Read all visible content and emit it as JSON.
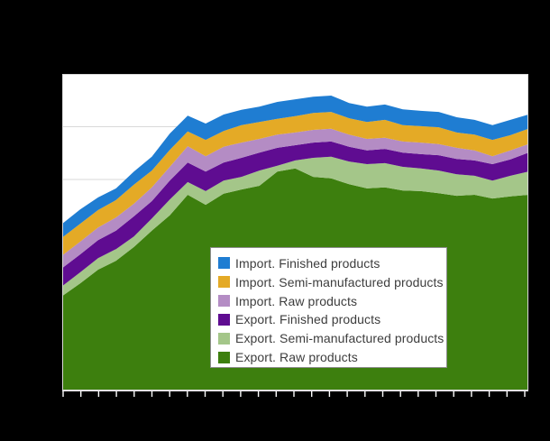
{
  "figure": {
    "background": "#000000",
    "plot": {
      "background": "#ffffff",
      "grid_color": "#d9d9d9",
      "border_color": "#d9d9d9",
      "axis_line_color": "#ececec",
      "tick_color": "#ffffff",
      "y_gridline_divisions": 6,
      "x_tick_count": 27,
      "axis_tick_labels_visible": false,
      "title_visible": false
    },
    "legend": {
      "background": "#ffffff",
      "border_color": "#8c8c8c",
      "text_color": "#3d3d3d",
      "order": "top entry = top stack band"
    }
  },
  "chart_data": {
    "type": "area",
    "stacked": true,
    "grid": true,
    "legend_position": "inside-bottom-center",
    "x_point_count": 27,
    "xlim": [
      0,
      26
    ],
    "ylim": [
      0,
      6
    ],
    "y_unit": "gridline units (numeric axis labels not visible in image)",
    "x_labels_visible": false,
    "y_labels_visible": false,
    "series": [
      {
        "name": "Export. Raw products",
        "color": "#3d7f0e",
        "values": [
          1.79,
          2.03,
          2.29,
          2.46,
          2.72,
          3.03,
          3.32,
          3.71,
          3.52,
          3.73,
          3.81,
          3.88,
          4.15,
          4.21,
          4.05,
          4.02,
          3.91,
          3.83,
          3.85,
          3.79,
          3.78,
          3.74,
          3.69,
          3.71,
          3.64,
          3.68,
          3.71
        ]
      },
      {
        "name": "Export. Semi-manufactured products",
        "color": "#a4c689",
        "values": [
          0.19,
          0.21,
          0.22,
          0.22,
          0.2,
          0.23,
          0.3,
          0.24,
          0.26,
          0.25,
          0.24,
          0.29,
          0.11,
          0.15,
          0.36,
          0.41,
          0.43,
          0.46,
          0.46,
          0.45,
          0.43,
          0.43,
          0.41,
          0.36,
          0.34,
          0.39,
          0.44
        ]
      },
      {
        "name": "Export. Finished products",
        "color": "#5f0c91",
        "values": [
          0.34,
          0.34,
          0.34,
          0.35,
          0.38,
          0.33,
          0.36,
          0.37,
          0.37,
          0.34,
          0.36,
          0.34,
          0.34,
          0.29,
          0.29,
          0.29,
          0.28,
          0.26,
          0.27,
          0.27,
          0.27,
          0.29,
          0.29,
          0.29,
          0.31,
          0.31,
          0.36
        ]
      },
      {
        "name": "Import. Raw products",
        "color": "#b48cc4",
        "values": [
          0.24,
          0.24,
          0.24,
          0.25,
          0.24,
          0.26,
          0.26,
          0.31,
          0.29,
          0.3,
          0.29,
          0.26,
          0.25,
          0.24,
          0.24,
          0.24,
          0.23,
          0.22,
          0.21,
          0.21,
          0.22,
          0.21,
          0.21,
          0.19,
          0.15,
          0.17,
          0.16
        ]
      },
      {
        "name": "Import. Semi-manufactured products",
        "color": "#e4aa26",
        "values": [
          0.34,
          0.34,
          0.33,
          0.33,
          0.36,
          0.32,
          0.32,
          0.28,
          0.31,
          0.3,
          0.33,
          0.32,
          0.3,
          0.31,
          0.32,
          0.32,
          0.31,
          0.32,
          0.34,
          0.31,
          0.31,
          0.32,
          0.29,
          0.3,
          0.31,
          0.29,
          0.29
        ]
      },
      {
        "name": "Import. Finished products",
        "color": "#1f7dd2",
        "values": [
          0.26,
          0.27,
          0.24,
          0.22,
          0.25,
          0.26,
          0.31,
          0.3,
          0.31,
          0.31,
          0.29,
          0.29,
          0.32,
          0.32,
          0.31,
          0.31,
          0.29,
          0.29,
          0.29,
          0.3,
          0.29,
          0.29,
          0.29,
          0.28,
          0.28,
          0.29,
          0.27
        ]
      }
    ]
  }
}
